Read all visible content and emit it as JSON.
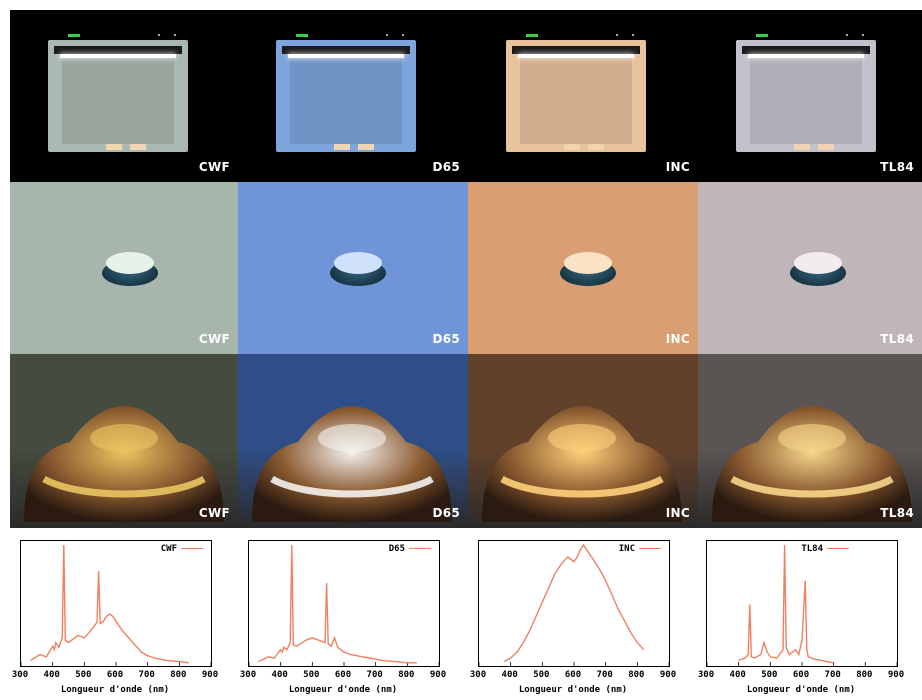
{
  "illuminants": [
    {
      "id": "cwf",
      "label": "CWF",
      "bg_booth": "#a9b8b0",
      "bg_disc": "#a7b6ad",
      "bg_car": "#454b3f",
      "disc_top": "#e8f0ea",
      "car_glow": "#e9c560"
    },
    {
      "id": "d65",
      "label": "D65",
      "bg_booth": "#7ea4dd",
      "bg_disc": "#6f94d8",
      "bg_car": "#2f4e87",
      "disc_top": "#cfe1fb",
      "car_glow": "#f4f2ee"
    },
    {
      "id": "inc",
      "label": "INC",
      "bg_booth": "#e8c19d",
      "bg_disc": "#d99e72",
      "bg_car": "#62412a",
      "disc_top": "#fae2c4",
      "car_glow": "#ffcf7a"
    },
    {
      "id": "tl84",
      "label": "TL84",
      "bg_booth": "#c3c1cc",
      "bg_disc": "#c0b6b8",
      "bg_car": "#5a5553",
      "disc_top": "#f2ecee",
      "car_glow": "#f6d68a"
    }
  ],
  "spectra": {
    "xlabel": "Longueur d'onde (nm)",
    "x_ticks": [
      "300",
      "400",
      "500",
      "600",
      "700",
      "800",
      "900"
    ],
    "xlim": [
      300,
      900
    ],
    "line_color": "#f08060"
  },
  "chart_data": [
    {
      "type": "line",
      "series": [
        {
          "name": "CWF",
          "x": [
            330,
            360,
            380,
            400,
            405,
            410,
            420,
            430,
            435,
            440,
            450,
            480,
            500,
            520,
            540,
            545,
            550,
            560,
            570,
            580,
            590,
            600,
            620,
            640,
            660,
            680,
            700,
            720,
            760,
            800,
            830
          ],
          "y": [
            0.03,
            0.08,
            0.06,
            0.15,
            0.12,
            0.18,
            0.14,
            0.22,
            1.0,
            0.2,
            0.18,
            0.24,
            0.22,
            0.28,
            0.35,
            0.78,
            0.34,
            0.36,
            0.4,
            0.42,
            0.4,
            0.36,
            0.28,
            0.22,
            0.16,
            0.1,
            0.07,
            0.05,
            0.03,
            0.02,
            0.01
          ]
        }
      ],
      "xlabel": "Longueur d'onde (nm)",
      "xlim": [
        300,
        900
      ]
    },
    {
      "type": "line",
      "series": [
        {
          "name": "D65",
          "x": [
            330,
            360,
            380,
            400,
            405,
            410,
            420,
            430,
            435,
            440,
            450,
            480,
            500,
            520,
            540,
            545,
            550,
            560,
            570,
            580,
            590,
            600,
            620,
            640,
            660,
            680,
            700,
            720,
            760,
            800,
            830
          ],
          "y": [
            0.02,
            0.06,
            0.05,
            0.12,
            0.1,
            0.14,
            0.12,
            0.18,
            1.0,
            0.16,
            0.15,
            0.2,
            0.22,
            0.2,
            0.18,
            0.68,
            0.17,
            0.15,
            0.22,
            0.14,
            0.12,
            0.1,
            0.08,
            0.07,
            0.06,
            0.05,
            0.04,
            0.03,
            0.02,
            0.01,
            0.01
          ]
        }
      ],
      "xlabel": "Longueur d'onde (nm)",
      "xlim": [
        300,
        900
      ]
    },
    {
      "type": "line",
      "series": [
        {
          "name": "INC",
          "x": [
            380,
            400,
            420,
            440,
            460,
            480,
            500,
            520,
            540,
            560,
            580,
            590,
            600,
            610,
            620,
            630,
            640,
            660,
            680,
            700,
            720,
            740,
            760,
            780,
            800,
            820
          ],
          "y": [
            0.02,
            0.05,
            0.1,
            0.18,
            0.28,
            0.4,
            0.52,
            0.64,
            0.76,
            0.84,
            0.9,
            0.88,
            0.86,
            0.9,
            0.96,
            1.0,
            0.96,
            0.88,
            0.8,
            0.7,
            0.58,
            0.46,
            0.36,
            0.26,
            0.18,
            0.12
          ]
        }
      ],
      "xlabel": "Longueur d'onde (nm)",
      "xlim": [
        300,
        900
      ]
    },
    {
      "type": "line",
      "series": [
        {
          "name": "TL84",
          "x": [
            400,
            420,
            430,
            435,
            440,
            450,
            470,
            480,
            490,
            500,
            520,
            540,
            545,
            550,
            560,
            570,
            580,
            590,
            600,
            610,
            615,
            620,
            640,
            660,
            680,
            700
          ],
          "y": [
            0.03,
            0.05,
            0.08,
            0.5,
            0.06,
            0.05,
            0.08,
            0.18,
            0.1,
            0.06,
            0.05,
            0.12,
            1.0,
            0.14,
            0.08,
            0.1,
            0.12,
            0.08,
            0.2,
            0.7,
            0.12,
            0.06,
            0.04,
            0.03,
            0.02,
            0.01
          ]
        }
      ],
      "xlabel": "Longueur d'onde (nm)",
      "xlim": [
        300,
        900
      ]
    }
  ]
}
